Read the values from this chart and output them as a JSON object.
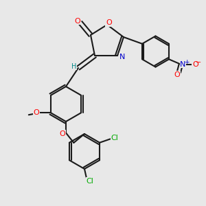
{
  "bg_color": "#e8e8e8",
  "bond_color": "#1a1a1a",
  "colors": {
    "O": "#ff0000",
    "N": "#0000cc",
    "Cl": "#00aa00",
    "H": "#008888",
    "C": "#1a1a1a"
  },
  "figsize": [
    3.0,
    3.0
  ],
  "dpi": 100
}
